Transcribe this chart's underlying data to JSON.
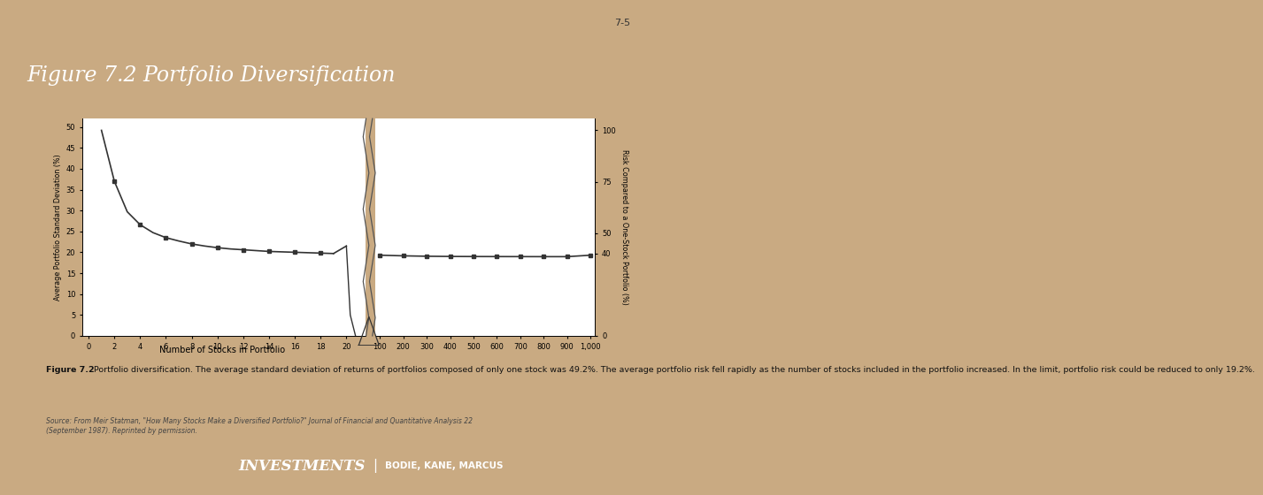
{
  "slide_bg": "#c9aa82",
  "header_bg": "#0d1e6b",
  "header_text": "Figure 7.2 Portfolio Diversification",
  "header_text_color": "#ffffff",
  "footer_bg": "#0d1e6b",
  "footer_text_investments": "INVESTMENTS",
  "footer_text_authors": "BODIE, KANE, MARCUS",
  "footer_text_color": "#ffffff",
  "slide_number": "7-5",
  "panel_bg": "#e8eef5",
  "chart_bg": "#ffffff",
  "caption_bg": "#cddde8",
  "caption_bold": "Figure 7.2",
  "caption_text": "  Portfolio diversification. The average standard deviation of returns of portfolios composed of only one stock was 49.2%. The average portfolio risk fell rapidly as the number of stocks included in the portfolio increased. In the limit, portfolio risk could be reduced to only 19.2%.",
  "source_text": "Source: From Meir Statman, \"How Many Stocks Make a Diversified Portfolio?\" Journal of Financial and Quantitative Analysis 22\n(September 1987). Reprinted by permission.",
  "left_ylabel": "Average Portfolio Standard Deviation (%)",
  "right_ylabel": "Risk Compared to a One-Stock Portfolio (%)",
  "xlabel": "Number of Stocks in Portfolio",
  "left_yticks": [
    0,
    5,
    10,
    15,
    20,
    25,
    30,
    35,
    40,
    45,
    50
  ],
  "right_ytick_vals": [
    0,
    40,
    50,
    75,
    100
  ],
  "left_xticks": [
    0,
    2,
    4,
    6,
    8,
    10,
    12,
    14,
    16,
    18,
    20
  ],
  "right_xticks": [
    100,
    200,
    300,
    400,
    500,
    600,
    700,
    800,
    900,
    1000
  ],
  "right_xtick_labels": [
    "100",
    "200",
    "300",
    "400",
    "500",
    "600",
    "700",
    "800",
    "900",
    "1,000"
  ],
  "curve_color": "#333333",
  "ylim": [
    0,
    52
  ],
  "left_x": [
    1,
    2,
    3,
    4,
    5,
    6,
    7,
    8,
    9,
    10,
    11,
    12,
    13,
    14,
    15,
    16,
    17,
    18,
    19,
    20
  ],
  "left_y": [
    49.2,
    37.0,
    29.7,
    26.6,
    24.7,
    23.5,
    22.7,
    22.0,
    21.5,
    21.1,
    20.8,
    20.6,
    20.4,
    20.2,
    20.1,
    20.0,
    19.9,
    19.8,
    19.7,
    21.5
  ],
  "right_x": [
    100,
    200,
    300,
    400,
    500,
    600,
    700,
    800,
    900,
    1000
  ],
  "right_y": [
    19.3,
    19.15,
    19.05,
    19.0,
    18.98,
    18.97,
    18.96,
    18.95,
    18.95,
    19.3
  ],
  "marker_left_x": [
    2,
    4,
    6,
    8,
    10,
    12,
    14,
    16,
    18,
    20
  ],
  "marker_left_y": [
    37.0,
    26.6,
    23.5,
    22.0,
    21.1,
    20.6,
    20.2,
    20.0,
    19.8,
    21.5
  ],
  "marker_right_x": [
    100,
    200,
    300,
    400,
    500,
    600,
    700,
    800,
    900,
    1000
  ],
  "marker_right_y": [
    19.3,
    19.15,
    19.05,
    19.0,
    18.98,
    18.97,
    18.96,
    18.95,
    18.95,
    19.3
  ]
}
